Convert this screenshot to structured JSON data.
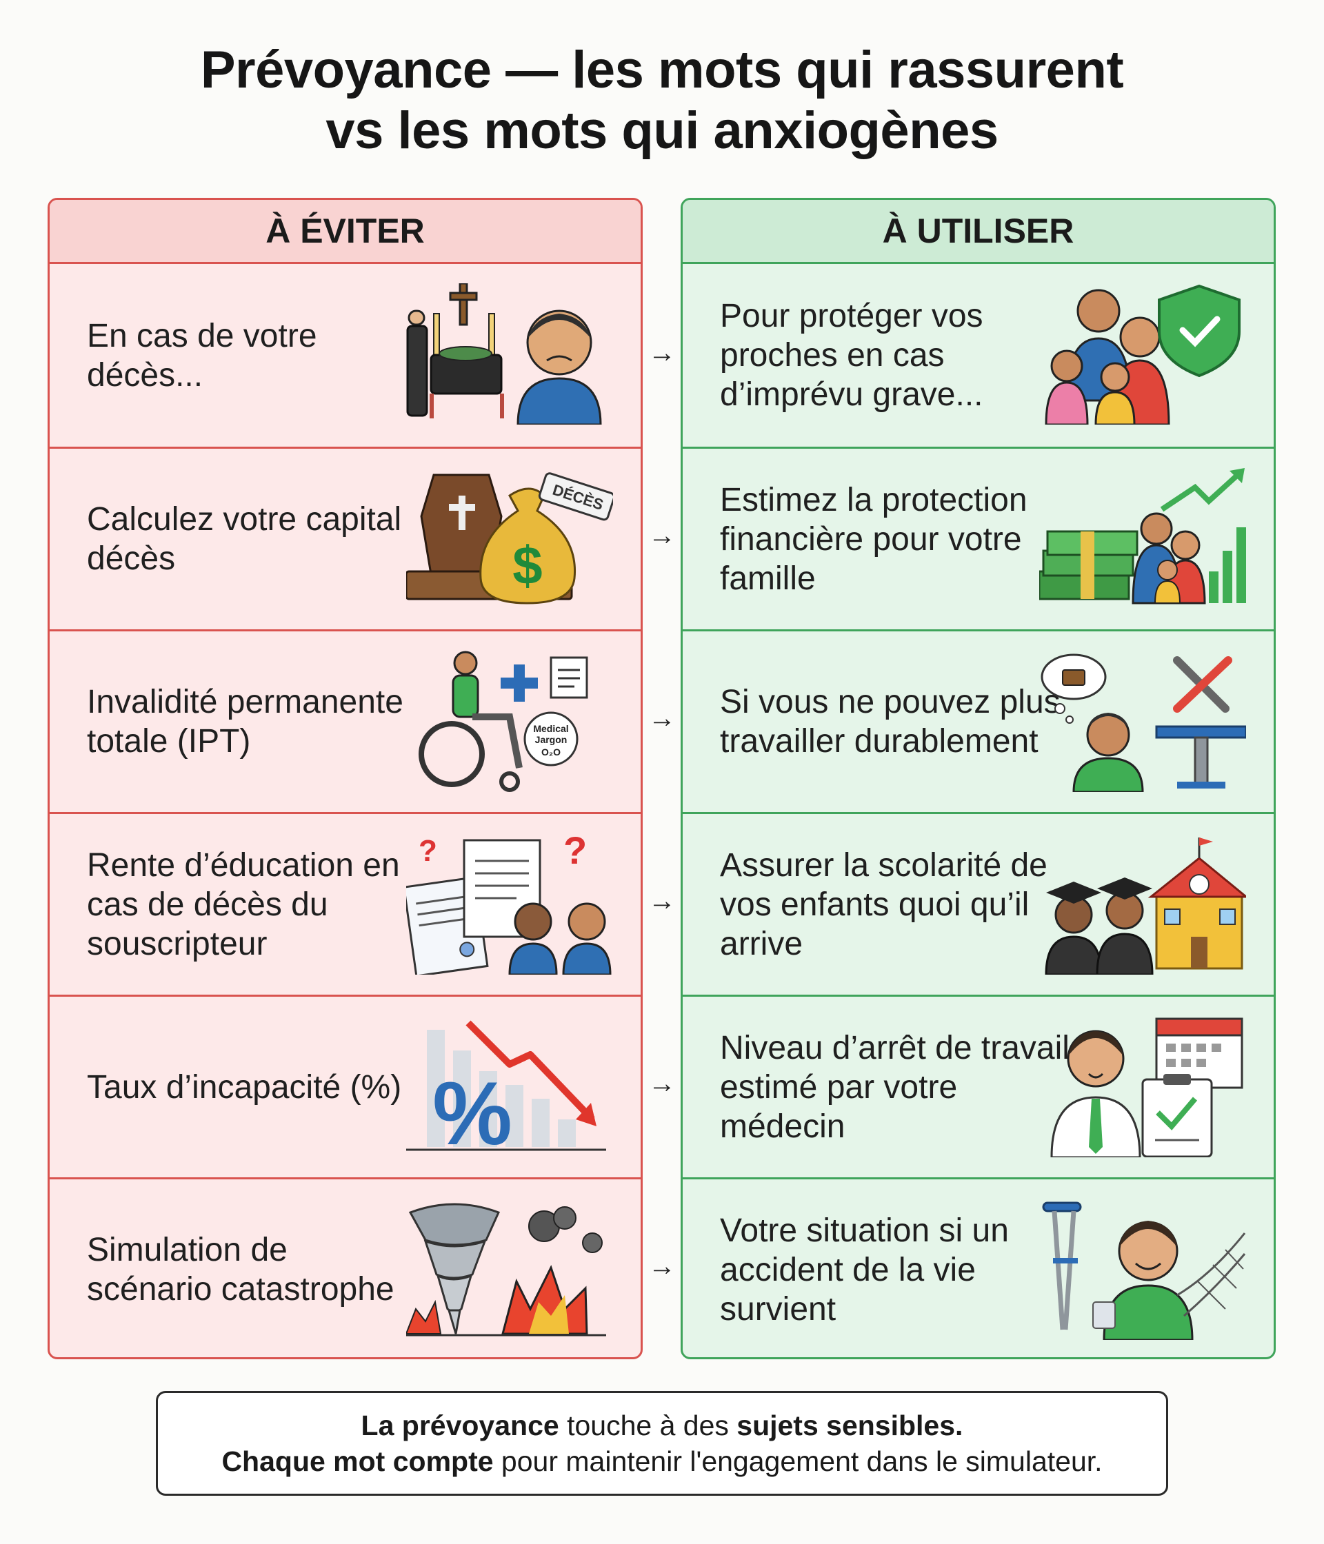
{
  "title": {
    "line1": "Prévoyance — les mots qui rassurent",
    "line2": "vs les mots qui anxiogènes"
  },
  "avoid": {
    "heading": "À ÉVITER",
    "color": "#d9534f",
    "items": [
      {
        "text": "En cas de votre décès...",
        "icon": "funeral-icon"
      },
      {
        "text": "Calculez votre capital décès",
        "icon": "coffin-money-bag-icon"
      },
      {
        "text": "Invalidité permanente totale (IPT)",
        "icon": "wheelchair-medical-icon",
        "badge_line1": "Medical",
        "badge_line2": "Jargon",
        "badge_line3": "O₂O"
      },
      {
        "text": "Rente d’éducation en cas de décès du souscripteur",
        "icon": "confusing-documents-icon"
      },
      {
        "text": "Taux d’incapacité (%)",
        "icon": "percent-falling-chart-icon"
      },
      {
        "text": "Simulation de scénario catastrophe",
        "icon": "tornado-explosion-icon"
      }
    ],
    "money_tag": "DÉCÈS"
  },
  "use": {
    "heading": "À UTILISER",
    "color": "#3fa45b",
    "items": [
      {
        "text": "Pour protéger vos proches en cas d’imprévu grave...",
        "icon": "family-shield-icon"
      },
      {
        "text": "Estimez la protection financière pour votre famille",
        "icon": "money-family-growth-icon"
      },
      {
        "text": "Si vous ne pouvez plus travailler durablement",
        "icon": "thinking-worker-tools-icon"
      },
      {
        "text": "Assurer la scolarité de vos enfants quoi qu’il arrive",
        "icon": "graduates-school-icon"
      },
      {
        "text": "Niveau d’arrêt de travail estimé par votre médecin",
        "icon": "doctor-calendar-icon"
      },
      {
        "text": "Votre situation si un accident de la vie survient",
        "icon": "crutch-safety-net-icon"
      }
    ]
  },
  "arrow": "→",
  "footer": {
    "l1_a": "La prévoyance",
    "l1_b": " touche à des ",
    "l1_c": "sujets sensibles.",
    "l2_a": "Chaque mot compte",
    "l2_b": " pour maintenir l'engagement dans le simulateur."
  }
}
